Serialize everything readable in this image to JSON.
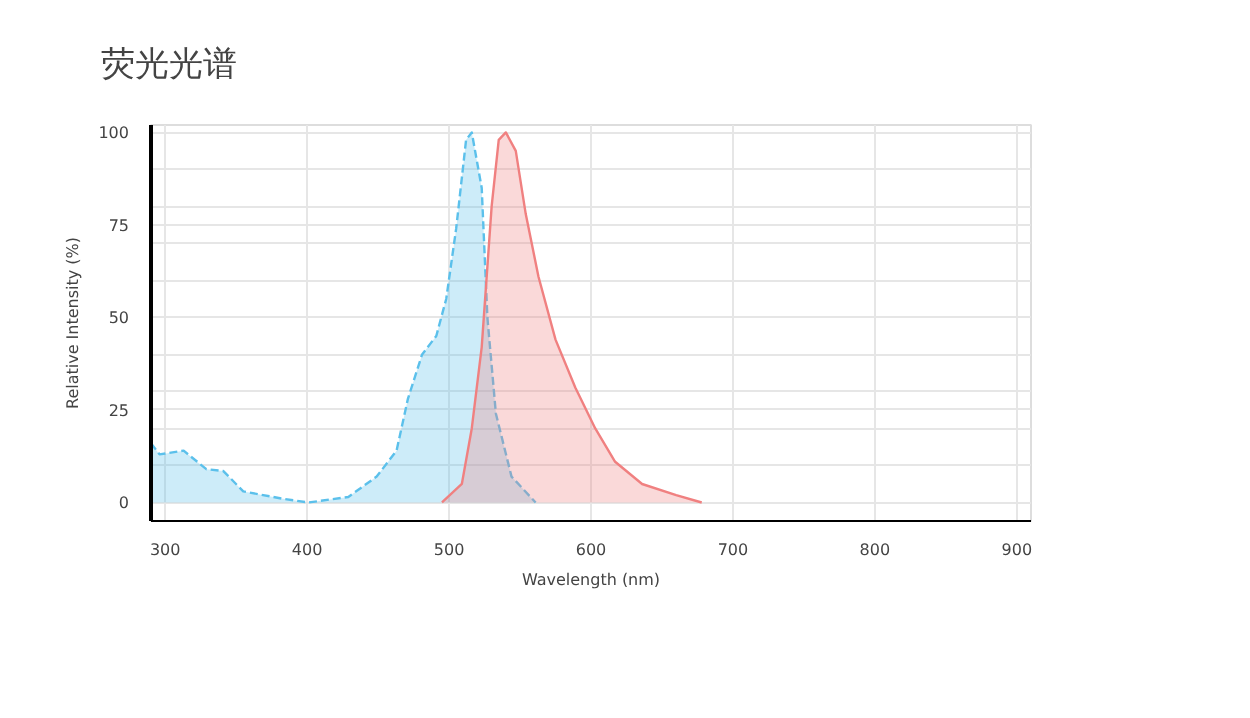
{
  "chart_data": {
    "type": "area",
    "title": "荧光光谱",
    "xlabel": "Wavelength (nm)",
    "ylabel": "Relative Intensity (%)",
    "xlim": [
      290,
      910
    ],
    "ylim": [
      -5,
      102
    ],
    "xticks": [
      300,
      400,
      500,
      600,
      700,
      800,
      900
    ],
    "yticks": [
      0,
      {
        "value": 10,
        "label": null
      },
      {
        "value": 20,
        "label": null
      },
      25,
      {
        "value": 30,
        "label": null
      },
      {
        "value": 40,
        "label": null
      },
      50,
      {
        "value": 60,
        "label": null
      },
      {
        "value": 70,
        "label": null
      },
      75,
      {
        "value": 80,
        "label": null
      },
      {
        "value": 90,
        "label": null
      },
      100
    ],
    "grid": true,
    "series": [
      {
        "color": "#5bc0eb",
        "line_style": "dashed",
        "x": [
          290,
          296,
          313,
          329,
          341,
          355,
          383,
          401,
          429,
          449,
          463,
          471,
          481,
          491,
          498,
          505,
          512,
          516,
          523,
          527,
          533,
          544,
          561
        ],
        "values": [
          16,
          13,
          14,
          9,
          8.5,
          3,
          1,
          0,
          1.5,
          7,
          14,
          28,
          40,
          45,
          55,
          74,
          98,
          100,
          85,
          50,
          24,
          7,
          0
        ]
      },
      {
        "color": "#f08080",
        "line_style": "solid",
        "x": [
          495,
          509,
          516,
          523,
          530,
          535,
          540,
          547,
          554,
          563,
          575,
          589,
          603,
          617,
          636,
          660,
          678
        ],
        "values": [
          0,
          5,
          20,
          42,
          80,
          98,
          100,
          95,
          78,
          61,
          44,
          31,
          20,
          11,
          5,
          2,
          0
        ]
      }
    ]
  }
}
